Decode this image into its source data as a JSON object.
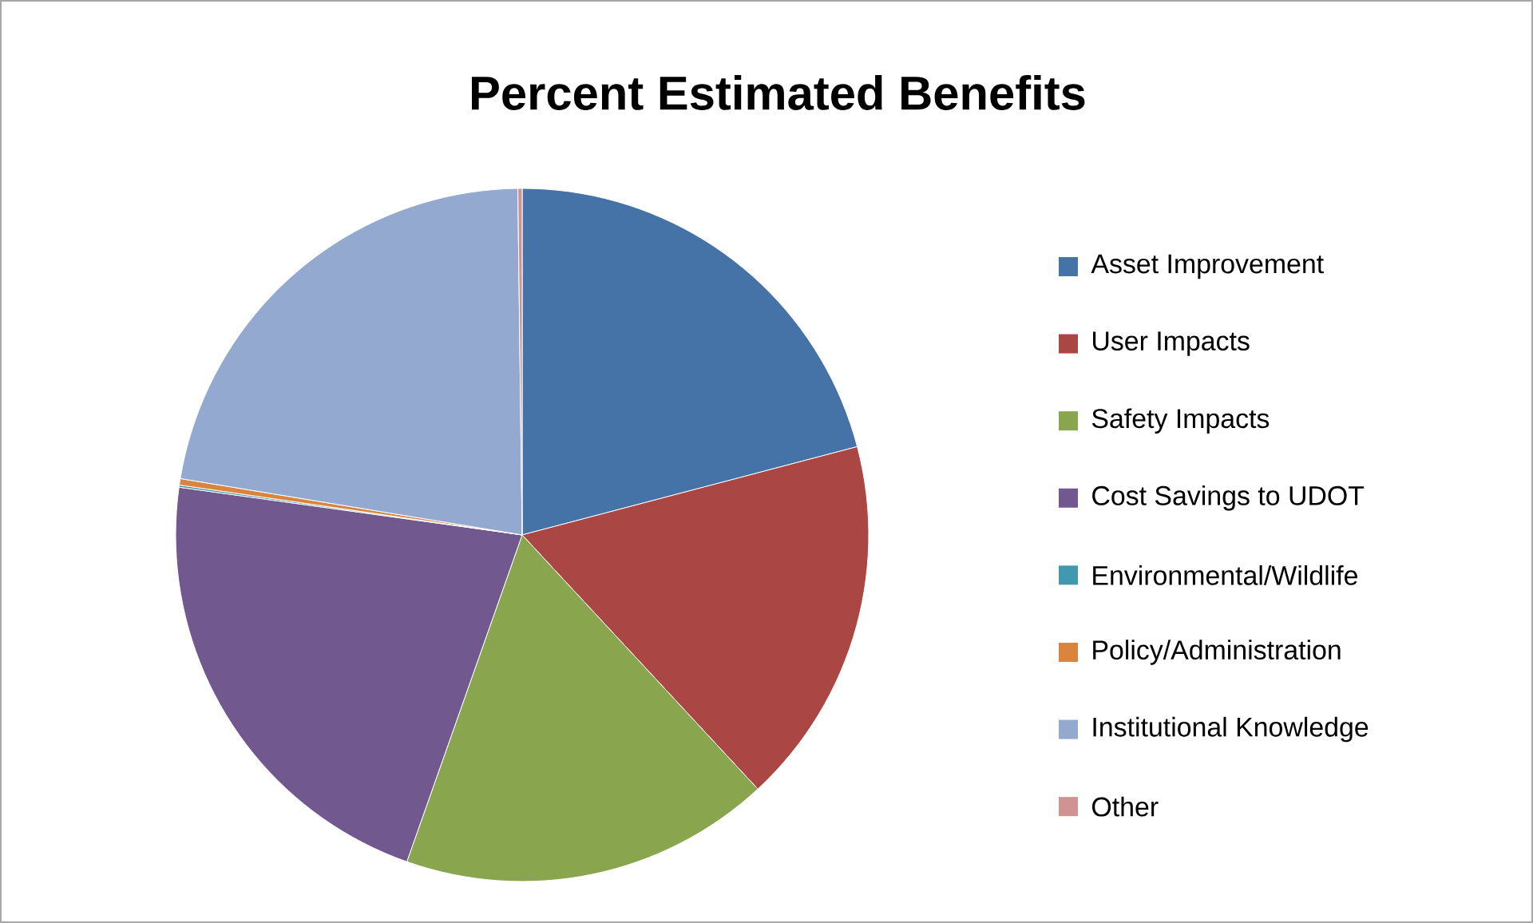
{
  "chart_data": {
    "type": "pie",
    "title": "Percent Estimated Benefits",
    "categories": [
      "Asset Improvement",
      "User Impacts",
      "Safety Impacts",
      "Cost Savings to UDOT",
      "Environmental/Wildlife",
      "Policy/Administration",
      "Institutional Knowledge",
      "Other"
    ],
    "values": [
      20.9,
      17.2,
      17.3,
      21.8,
      0.1,
      0.3,
      22.2,
      0.2
    ],
    "colors": [
      "#4572a7",
      "#aa4643",
      "#89a54e",
      "#71588f",
      "#4198af",
      "#db843d",
      "#93a9cf",
      "#d19392"
    ],
    "legend": "right"
  }
}
